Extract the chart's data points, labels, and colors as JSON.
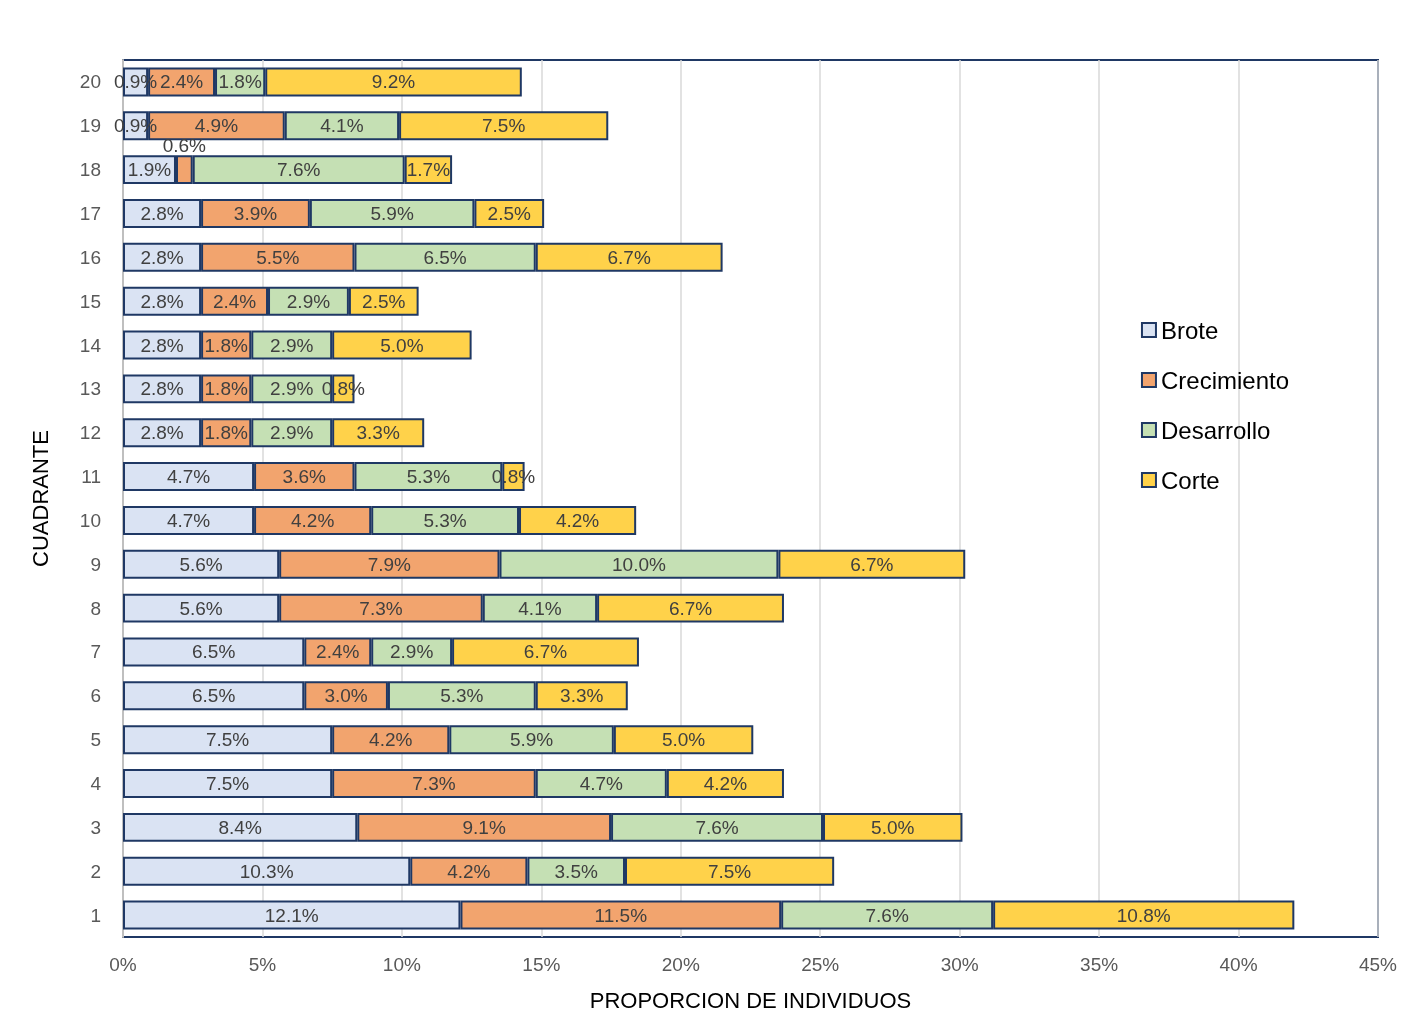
{
  "chart_data": {
    "type": "bar",
    "orientation": "horizontal",
    "stacked": true,
    "xlabel": "PROPORCION DE INDIVIDUOS",
    "ylabel": "CUADRANTE",
    "categories": [
      "20",
      "19",
      "18",
      "17",
      "16",
      "15",
      "14",
      "13",
      "12",
      "11",
      "10",
      "9",
      "8",
      "7",
      "6",
      "5",
      "4",
      "3",
      "2",
      "1"
    ],
    "xlim": [
      0,
      45
    ],
    "xticks": [
      {
        "value": 0,
        "label": "0%"
      },
      {
        "value": 5,
        "label": "5%"
      },
      {
        "value": 10,
        "label": "10%"
      },
      {
        "value": 15,
        "label": "15%"
      },
      {
        "value": 20,
        "label": "20%"
      },
      {
        "value": 25,
        "label": "25%"
      },
      {
        "value": 30,
        "label": "30%"
      },
      {
        "value": 35,
        "label": "35%"
      },
      {
        "value": 40,
        "label": "40%"
      },
      {
        "value": 45,
        "label": "45%"
      }
    ],
    "grid": "x",
    "legend": "right",
    "series": [
      {
        "name": "Brote",
        "color": "#dae3f3",
        "values": [
          0.9,
          0.9,
          1.9,
          2.8,
          2.8,
          2.8,
          2.8,
          2.8,
          2.8,
          4.7,
          4.7,
          5.6,
          5.6,
          6.5,
          6.5,
          7.5,
          7.5,
          8.4,
          10.3,
          12.1
        ],
        "value_labels": [
          "0.9%",
          "0.9%",
          "1.9%",
          "2.8%",
          "2.8%",
          "2.8%",
          "2.8%",
          "2.8%",
          "2.8%",
          "4.7%",
          "4.7%",
          "5.6%",
          "5.6%",
          "6.5%",
          "6.5%",
          "7.5%",
          "7.5%",
          "8.4%",
          "10.3%",
          "12.1%"
        ]
      },
      {
        "name": "Crecimiento",
        "color": "#f2a46e",
        "values": [
          2.4,
          4.9,
          0.6,
          3.9,
          5.5,
          2.4,
          1.8,
          1.8,
          1.8,
          3.6,
          4.2,
          7.9,
          7.3,
          2.4,
          3.0,
          4.2,
          7.3,
          9.1,
          4.2,
          11.5
        ],
        "value_labels": [
          "2.4%",
          "4.9%",
          "0.6%",
          "3.9%",
          "5.5%",
          "2.4%",
          "1.8%",
          "1.8%",
          "1.8%",
          "3.6%",
          "4.2%",
          "7.9%",
          "7.3%",
          "2.4%",
          "3.0%",
          "4.2%",
          "7.3%",
          "9.1%",
          "4.2%",
          "11.5%"
        ]
      },
      {
        "name": "Desarrollo",
        "color": "#c5e0b4",
        "values": [
          1.8,
          4.1,
          7.6,
          5.9,
          6.5,
          2.9,
          2.9,
          2.9,
          2.9,
          5.3,
          5.3,
          10.0,
          4.1,
          2.9,
          5.3,
          5.9,
          4.7,
          7.6,
          3.5,
          7.6
        ],
        "value_labels": [
          "1.8%",
          "4.1%",
          "7.6%",
          "5.9%",
          "6.5%",
          "2.9%",
          "2.9%",
          "2.9%",
          "2.9%",
          "5.3%",
          "5.3%",
          "10.0%",
          "4.1%",
          "2.9%",
          "5.3%",
          "5.9%",
          "4.7%",
          "7.6%",
          "3.5%",
          "7.6%"
        ]
      },
      {
        "name": "Corte",
        "color": "#ffd24a",
        "values": [
          9.2,
          7.5,
          1.7,
          2.5,
          6.7,
          2.5,
          5.0,
          0.8,
          3.3,
          0.8,
          4.2,
          6.7,
          6.7,
          6.7,
          3.3,
          5.0,
          4.2,
          5.0,
          7.5,
          10.8
        ],
        "value_labels": [
          "9.2%",
          "7.5%",
          "1.7%",
          "2.5%",
          "6.7%",
          "2.5%",
          "5.0%",
          "0.8%",
          "3.3%",
          "0.8%",
          "4.2%",
          "6.7%",
          "6.7%",
          "6.7%",
          "3.3%",
          "5.0%",
          "4.2%",
          "5.0%",
          "7.5%",
          "10.8%"
        ]
      }
    ]
  }
}
